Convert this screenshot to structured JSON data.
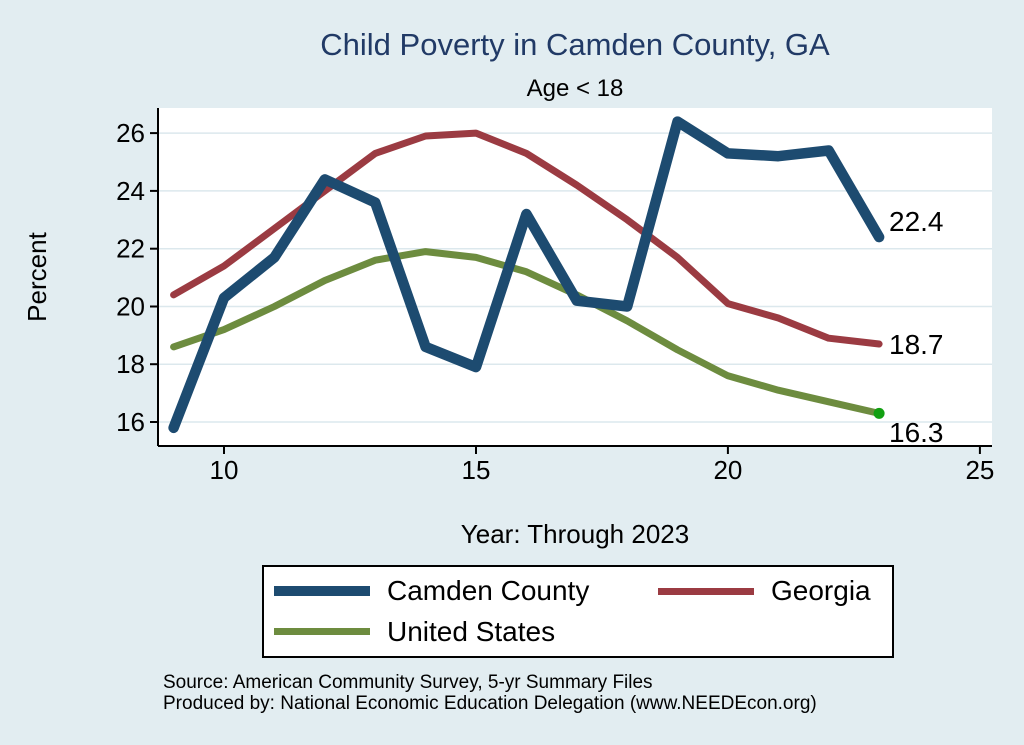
{
  "title": "Child Poverty in Camden County, GA",
  "subtitle": "Age < 18",
  "chart_data": {
    "type": "line",
    "x": [
      9,
      10,
      11,
      12,
      13,
      14,
      15,
      16,
      17,
      18,
      19,
      20,
      21,
      22,
      23
    ],
    "x_tick_note": "two-digit years through 2023",
    "series": [
      {
        "name": "Camden County",
        "color": "#1d4b70",
        "values": [
          15.8,
          20.3,
          21.7,
          24.4,
          23.6,
          18.6,
          17.9,
          23.2,
          20.2,
          20.0,
          26.4,
          25.3,
          25.2,
          25.4,
          22.4
        ],
        "end_label": "22.4"
      },
      {
        "name": "Georgia",
        "color": "#9b3b42",
        "values": [
          20.4,
          21.4,
          22.7,
          24.0,
          25.3,
          25.9,
          26.0,
          25.3,
          24.2,
          23.0,
          21.7,
          20.1,
          19.6,
          18.9,
          18.7
        ],
        "end_label": "18.7"
      },
      {
        "name": "United States",
        "color": "#6d8c3f",
        "values": [
          18.6,
          19.2,
          20.0,
          20.9,
          21.6,
          21.9,
          21.7,
          21.2,
          20.4,
          19.5,
          18.5,
          17.6,
          17.1,
          16.7,
          16.3
        ],
        "end_label": "16.3",
        "end_dot_color": "#12a012"
      }
    ],
    "xlabel": "Year: Through 2023",
    "ylabel": "Percent",
    "x_ticks": [
      10,
      15,
      20,
      25
    ],
    "y_ticks": [
      16,
      18,
      20,
      22,
      24,
      26
    ],
    "xlim": [
      8.69,
      25.24
    ],
    "ylim": [
      15.17,
      26.87
    ],
    "grid": "horizontal",
    "legend_position": "bottom"
  },
  "legend": {
    "items": [
      {
        "label": "Camden County",
        "color": "#1d4b70"
      },
      {
        "label": "Georgia",
        "color": "#9b3b42"
      },
      {
        "label": "United States",
        "color": "#6d8c3f"
      }
    ]
  },
  "source": {
    "line1": "Source: American Community Survey, 5-yr Summary Files",
    "line2": "Produced by: National Economic Education Delegation (www.NEEDEcon.org)"
  },
  "colors": {
    "background": "#e2edf1",
    "title": "#213a66",
    "plot_background": "#ffffff",
    "gridline": "#dce8ed",
    "axis": "#000000"
  }
}
